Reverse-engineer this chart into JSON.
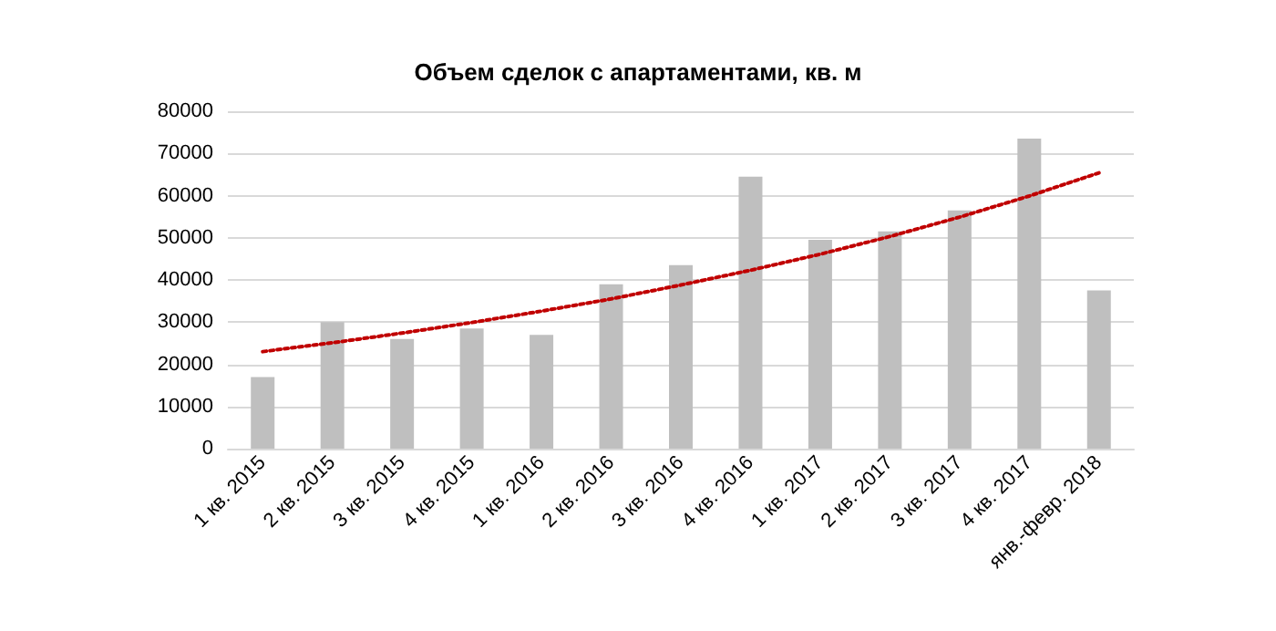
{
  "chart_data": {
    "type": "bar",
    "title": "Объем сделок с апартаментами, кв. м",
    "categories": [
      "1 кв. 2015",
      "2 кв. 2015",
      "3 кв. 2015",
      "4 кв. 2015",
      "1 кв. 2016",
      "2 кв. 2016",
      "3 кв. 2016",
      "4 кв. 2016",
      "1 кв. 2017",
      "2 кв. 2017",
      "3 кв. 2017",
      "4 кв. 2017",
      "янв.-февр. 2018"
    ],
    "series": [
      {
        "color": "#bfbfbf",
        "values": [
          17000,
          30000,
          26000,
          28500,
          27000,
          39000,
          43500,
          64500,
          49500,
          51500,
          56500,
          73500,
          37500
        ]
      },
      {
        "type": "line",
        "color": "#c00000",
        "line_style": "dotted",
        "values": [
          23000,
          25100,
          27400,
          29900,
          32600,
          35500,
          38800,
          42300,
          46100,
          50300,
          54900,
          59900,
          65400
        ]
      }
    ],
    "ylim": [
      0,
      80000
    ],
    "yticks": [
      0,
      10000,
      20000,
      30000,
      40000,
      50000,
      60000,
      70000,
      80000
    ],
    "grid": "y"
  }
}
